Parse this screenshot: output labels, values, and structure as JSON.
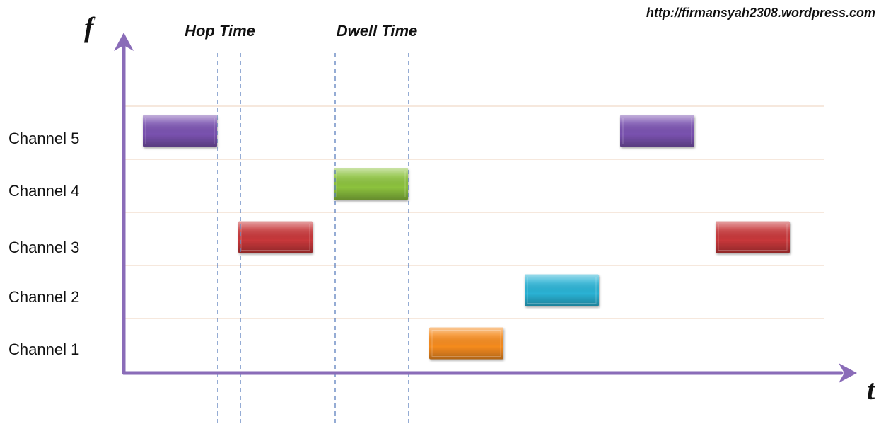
{
  "watermark": "http://firmansyah2308.wordpress.com",
  "axes": {
    "y_label": "f",
    "x_label": "t",
    "color": "#8a6cb8"
  },
  "intervals": {
    "hop_time": "Hop Time",
    "dwell_time": "Dwell Time"
  },
  "channels": [
    {
      "label": "Channel 5",
      "row": 5
    },
    {
      "label": "Channel 4",
      "row": 4
    },
    {
      "label": "Channel 3",
      "row": 3
    },
    {
      "label": "Channel 2",
      "row": 2
    },
    {
      "label": "Channel 1",
      "row": 1
    }
  ],
  "hops": [
    {
      "slot": 1,
      "channel": 5,
      "color": "#7a52b0"
    },
    {
      "slot": 2,
      "channel": 3,
      "color": "#c7373a"
    },
    {
      "slot": 3,
      "channel": 4,
      "color": "#8cc23e"
    },
    {
      "slot": 4,
      "channel": 1,
      "color": "#f58b1f"
    },
    {
      "slot": 5,
      "channel": 2,
      "color": "#2ab2d4"
    },
    {
      "slot": 6,
      "channel": 5,
      "color": "#7a52b0"
    },
    {
      "slot": 7,
      "channel": 3,
      "color": "#c7373a"
    }
  ]
}
